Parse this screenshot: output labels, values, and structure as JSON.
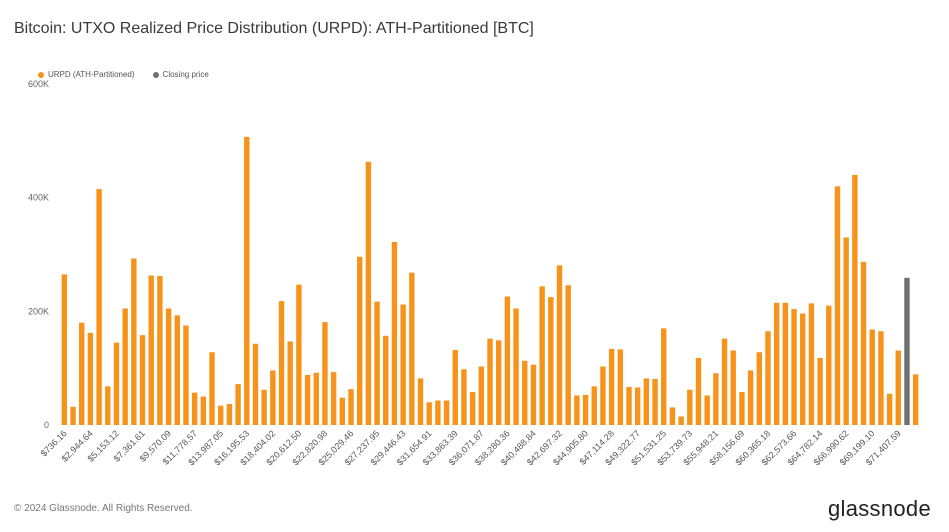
{
  "title": "Bitcoin: UTXO Realized Price Distribution (URPD): ATH-Partitioned [BTC]",
  "footer": "© 2024 Glassnode. All Rights Reserved.",
  "brand": "glassnode",
  "colors": {
    "urpd": "#f7931a",
    "closing": "#707070",
    "text": "#3a3a3a"
  },
  "chart_data": {
    "type": "bar",
    "legend": [
      {
        "name": "URPD (ATH-Partitioned)",
        "color": "#f7931a"
      },
      {
        "name": "Closing price",
        "color": "#707070"
      }
    ],
    "legend_position": "top-left",
    "ylim": [
      0,
      600000
    ],
    "yticks": [
      {
        "value": 0,
        "label": "0"
      },
      {
        "value": 200000,
        "label": "200K"
      },
      {
        "value": 400000,
        "label": "400K"
      },
      {
        "value": 600000,
        "label": "600K"
      }
    ],
    "xtick_labels": [
      "$736.16",
      "$2,944.64",
      "$5,153.12",
      "$7,361.61",
      "$9,570.09",
      "$11,778.57",
      "$13,987.05",
      "$16,195.53",
      "$18,404.02",
      "$20,612.50",
      "$22,820.98",
      "$25,029.46",
      "$27,237.95",
      "$29,446.43",
      "$31,654.91",
      "$33,863.39",
      "$36,071.87",
      "$38,280.36",
      "$40,488.84",
      "$42,697.32",
      "$44,905.80",
      "$47,114.28",
      "$49,322.77",
      "$51,531.25",
      "$53,739.73",
      "$55,948.21",
      "$58,156.69",
      "$60,365.18",
      "$62,573.66",
      "$64,782.14",
      "$66,990.62",
      "$69,199.10",
      "$71,407.59"
    ],
    "grid": false,
    "closing_price_bin_index": 97,
    "values": [
      265000,
      32000,
      180000,
      162000,
      415000,
      68000,
      145000,
      205000,
      293000,
      158000,
      263000,
      262000,
      205000,
      193000,
      175000,
      57000,
      50000,
      128000,
      34000,
      37000,
      72000,
      507000,
      143000,
      62000,
      96000,
      218000,
      147000,
      247000,
      88000,
      92000,
      181000,
      93000,
      48000,
      63000,
      296000,
      463000,
      217000,
      157000,
      322000,
      212000,
      268000,
      82000,
      40000,
      43000,
      43000,
      132000,
      98000,
      58000,
      103000,
      152000,
      149000,
      226000,
      205000,
      113000,
      106000,
      244000,
      225000,
      281000,
      246000,
      52000,
      53000,
      68000,
      103000,
      134000,
      133000,
      67000,
      66000,
      82000,
      81000,
      170000,
      31000,
      15000,
      62000,
      118000,
      52000,
      91000,
      152000,
      131000,
      58000,
      96000,
      128000,
      165000,
      215000,
      215000,
      204000,
      196000,
      214000,
      118000,
      210000,
      420000,
      330000,
      440000,
      287000,
      168000,
      165000,
      55000,
      131000,
      259000,
      89000
    ]
  }
}
